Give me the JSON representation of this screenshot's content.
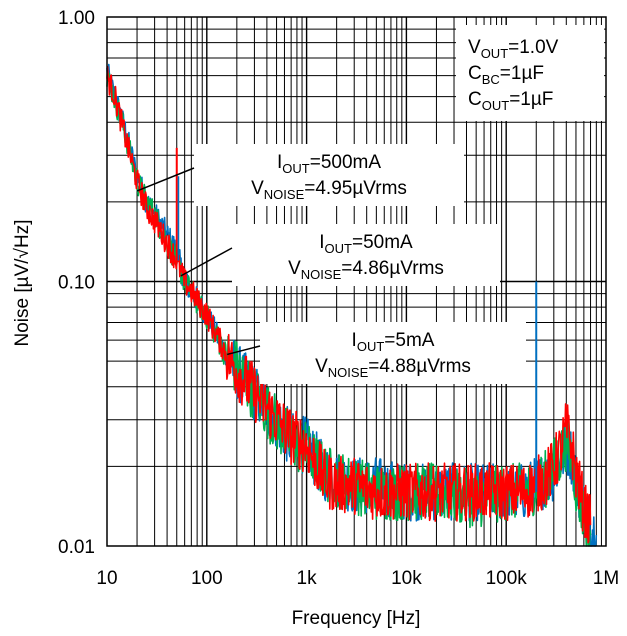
{
  "chart_data": {
    "type": "line",
    "title": "",
    "xlabel": "Frequency [Hz]",
    "ylabel": "Noise [µV/√Hz]",
    "x_scale": "log",
    "y_scale": "log",
    "xlim": [
      10,
      1000000
    ],
    "ylim": [
      0.01,
      1.0
    ],
    "grid": true,
    "x_ticks": [
      {
        "value": 10,
        "label": "10"
      },
      {
        "value": 100,
        "label": "100"
      },
      {
        "value": 1000,
        "label": "1k"
      },
      {
        "value": 10000,
        "label": "10k"
      },
      {
        "value": 100000,
        "label": "100k"
      },
      {
        "value": 1000000,
        "label": "1M"
      }
    ],
    "y_ticks": [
      {
        "value": 0.01,
        "label": "0.01"
      },
      {
        "value": 0.1,
        "label": "0.10"
      },
      {
        "value": 1.0,
        "label": "1.00"
      }
    ],
    "series": [
      {
        "color": "#0070c0",
        "x": [
          10,
          12,
          15,
          20,
          25,
          30,
          40,
          50,
          60,
          80,
          100,
          150,
          200,
          300,
          500,
          700,
          1000,
          1500,
          2000,
          3000,
          5000,
          10000,
          20000,
          50000,
          100000,
          150000,
          200000,
          250000,
          300000,
          350000,
          400000,
          450000,
          500000,
          600000,
          700000,
          800000
        ],
        "y": [
          0.62,
          0.5,
          0.38,
          0.25,
          0.2,
          0.18,
          0.15,
          0.13,
          0.1,
          0.085,
          0.075,
          0.055,
          0.046,
          0.038,
          0.03,
          0.025,
          0.024,
          0.019,
          0.018,
          0.017,
          0.017,
          0.016,
          0.016,
          0.016,
          0.016,
          0.016,
          0.017,
          0.018,
          0.019,
          0.021,
          0.024,
          0.022,
          0.018,
          0.014,
          0.012,
          0.011
        ]
      },
      {
        "color": "#00b050",
        "x": [
          10,
          12,
          15,
          20,
          25,
          30,
          40,
          50,
          60,
          80,
          100,
          150,
          200,
          300,
          500,
          700,
          1000,
          1500,
          2000,
          3000,
          5000,
          10000,
          20000,
          50000,
          100000,
          150000,
          200000,
          250000,
          300000,
          350000,
          400000,
          450000,
          500000,
          600000,
          700000
        ],
        "y": [
          0.6,
          0.49,
          0.37,
          0.24,
          0.2,
          0.18,
          0.14,
          0.12,
          0.1,
          0.084,
          0.074,
          0.054,
          0.047,
          0.038,
          0.029,
          0.025,
          0.023,
          0.019,
          0.018,
          0.017,
          0.016,
          0.016,
          0.016,
          0.015,
          0.016,
          0.016,
          0.017,
          0.018,
          0.02,
          0.022,
          0.025,
          0.022,
          0.017,
          0.013,
          0.011
        ]
      },
      {
        "color": "#ff0000",
        "x": [
          10,
          12,
          15,
          20,
          25,
          30,
          40,
          50,
          60,
          80,
          100,
          150,
          200,
          300,
          500,
          700,
          1000,
          1500,
          2000,
          3000,
          5000,
          10000,
          20000,
          50000,
          100000,
          150000,
          200000,
          250000,
          300000,
          350000,
          400000,
          450000,
          500000,
          600000,
          700000
        ],
        "y": [
          0.6,
          0.5,
          0.36,
          0.24,
          0.19,
          0.17,
          0.14,
          0.12,
          0.1,
          0.085,
          0.075,
          0.055,
          0.046,
          0.038,
          0.03,
          0.026,
          0.024,
          0.018,
          0.017,
          0.017,
          0.016,
          0.016,
          0.016,
          0.016,
          0.016,
          0.016,
          0.017,
          0.018,
          0.02,
          0.023,
          0.028,
          0.024,
          0.019,
          0.014,
          0.012
        ]
      }
    ],
    "annotations": {
      "conditions": [
        "VOUT=1.0V",
        "CBC=1µF",
        "COUT=1µF"
      ],
      "callouts": [
        {
          "line1": "IOUT=500mA",
          "line2": "VNOISE=4.95µVrms",
          "target_x": 20,
          "target_y": 0.22
        },
        {
          "line1": "IOUT=50mA",
          "line2": "VNOISE=4.86µVrms",
          "target_x": 55,
          "target_y": 0.105
        },
        {
          "line1": "IOUT=5mA",
          "line2": "VNOISE=4.88µVrms",
          "target_x": 160,
          "target_y": 0.053
        }
      ]
    }
  }
}
